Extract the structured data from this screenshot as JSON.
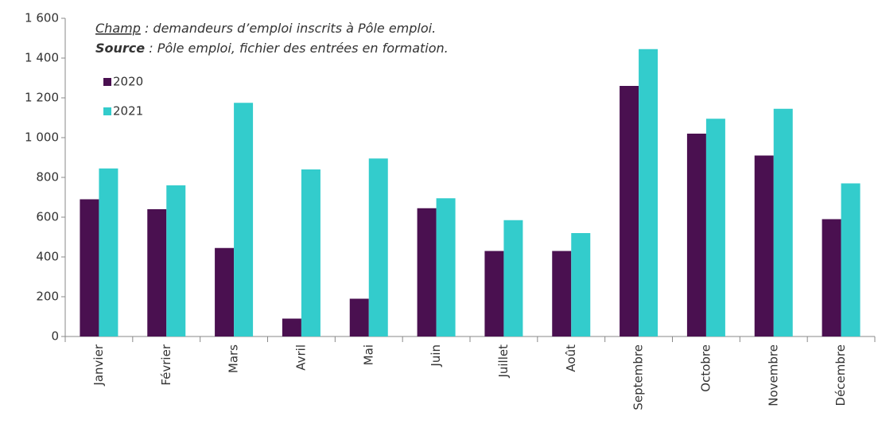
{
  "chart_data": {
    "type": "bar",
    "notes": [
      {
        "label": "Champ",
        "text": " : demandeurs d’emploi inscrits à Pôle emploi."
      },
      {
        "label": "Source",
        "text": " : Pôle emploi, fichier des entrées en formation."
      }
    ],
    "categories": [
      "Janvier",
      "Février",
      "Mars",
      "Avril",
      "Mai",
      "Juin",
      "Juillet",
      "Août",
      "Septembre",
      "Octobre",
      "Novembre",
      "Décembre"
    ],
    "series": [
      {
        "name": "2020",
        "color": "#4a1050",
        "values": [
          690,
          640,
          445,
          90,
          190,
          645,
          430,
          430,
          1260,
          1020,
          910,
          590
        ]
      },
      {
        "name": "2021",
        "color": "#33cccc",
        "values": [
          845,
          760,
          1175,
          840,
          895,
          695,
          585,
          520,
          1445,
          1095,
          1145,
          770
        ]
      }
    ],
    "ylim": [
      0,
      1600
    ],
    "yticks": [
      0,
      200,
      400,
      600,
      800,
      {
        "value": 1000,
        "label": "1 000"
      },
      {
        "value": 1200,
        "label": "1 200"
      },
      {
        "value": 1400,
        "label": "1 400"
      },
      {
        "value": 1600,
        "label": "1 600"
      }
    ],
    "legend": "upper left"
  }
}
